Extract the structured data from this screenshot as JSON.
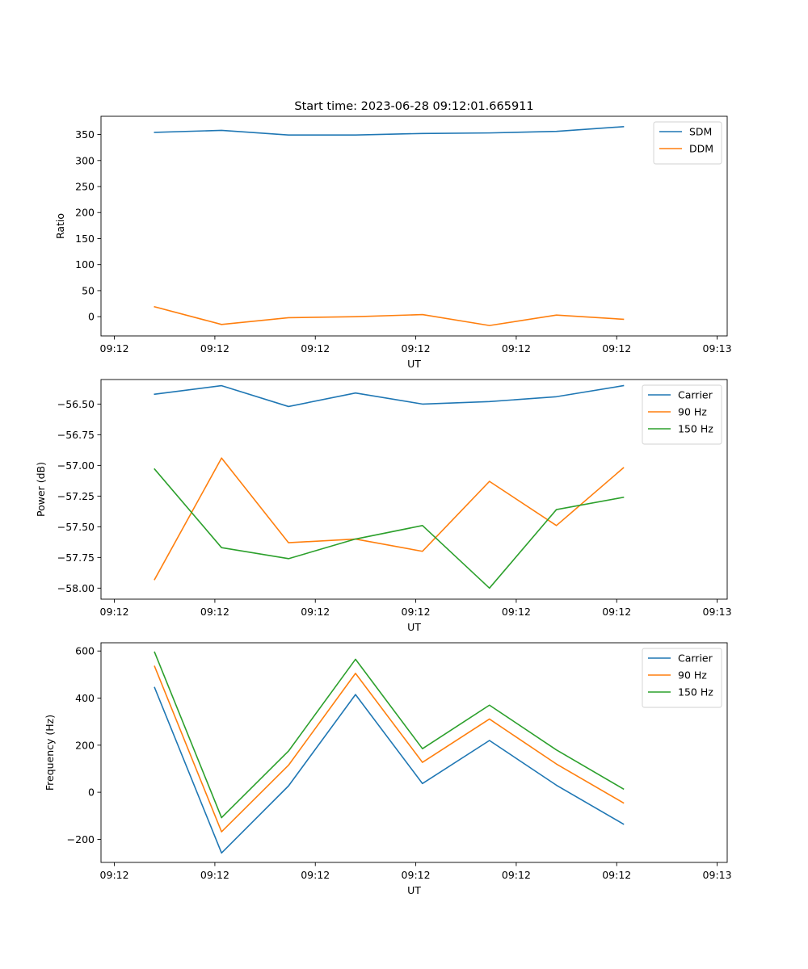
{
  "figure": {
    "suptitle": "Start time: 2023-06-28 09:12:01.665911"
  },
  "chart_data": [
    {
      "type": "line",
      "title": "Start time: 2023-06-28 09:12:01.665911",
      "xlabel": "UT",
      "ylabel": "Ratio",
      "x": [
        1,
        2,
        3,
        4,
        5,
        6,
        7,
        8
      ],
      "xlim": [
        0.2,
        9.55
      ],
      "xticks": [
        {
          "pos": 0.4,
          "label": "09:12"
        },
        {
          "pos": 1.9,
          "label": "09:12"
        },
        {
          "pos": 3.4,
          "label": "09:12"
        },
        {
          "pos": 4.9,
          "label": "09:12"
        },
        {
          "pos": 6.4,
          "label": "09:12"
        },
        {
          "pos": 7.9,
          "label": "09:12"
        },
        {
          "pos": 9.4,
          "label": "09:13"
        }
      ],
      "ylim": [
        -37,
        385
      ],
      "yticks": [
        0,
        50,
        100,
        150,
        200,
        250,
        300,
        350
      ],
      "ytick_labels": [
        "0",
        "50",
        "100",
        "150",
        "200",
        "250",
        "300",
        "350"
      ],
      "legend": "top-right",
      "series": [
        {
          "name": "SDM",
          "color": "#1f77b4",
          "values": [
            354,
            358,
            349,
            349,
            352,
            353,
            356,
            365
          ]
        },
        {
          "name": "DDM",
          "color": "#ff7f0e",
          "values": [
            19,
            -15,
            -2,
            0,
            4,
            -17,
            3,
            -5
          ]
        }
      ]
    },
    {
      "type": "line",
      "title": "",
      "xlabel": "UT",
      "ylabel": "Power (dB)",
      "x": [
        1,
        2,
        3,
        4,
        5,
        6,
        7,
        8
      ],
      "xlim": [
        0.2,
        9.55
      ],
      "xticks": [
        {
          "pos": 0.4,
          "label": "09:12"
        },
        {
          "pos": 1.9,
          "label": "09:12"
        },
        {
          "pos": 3.4,
          "label": "09:12"
        },
        {
          "pos": 4.9,
          "label": "09:12"
        },
        {
          "pos": 6.4,
          "label": "09:12"
        },
        {
          "pos": 7.9,
          "label": "09:12"
        },
        {
          "pos": 9.4,
          "label": "09:13"
        }
      ],
      "ylim": [
        -58.09,
        -56.3
      ],
      "yticks": [
        -58.0,
        -57.75,
        -57.5,
        -57.25,
        -57.0,
        -56.75,
        -56.5
      ],
      "ytick_labels": [
        "−58.00",
        "−57.75",
        "−57.50",
        "−57.25",
        "−57.00",
        "−56.75",
        "−56.50"
      ],
      "legend": "top-right",
      "series": [
        {
          "name": "Carrier",
          "color": "#1f77b4",
          "values": [
            -56.42,
            -56.35,
            -56.52,
            -56.41,
            -56.5,
            -56.48,
            -56.44,
            -56.35
          ]
        },
        {
          "name": "90 Hz",
          "color": "#ff7f0e",
          "values": [
            -57.93,
            -56.94,
            -57.63,
            -57.6,
            -57.7,
            -57.13,
            -57.49,
            -57.02
          ]
        },
        {
          "name": "150 Hz",
          "color": "#2ca02c",
          "values": [
            -57.03,
            -57.67,
            -57.76,
            -57.6,
            -57.49,
            -58.0,
            -57.36,
            -57.26
          ]
        }
      ]
    },
    {
      "type": "line",
      "title": "",
      "xlabel": "UT",
      "ylabel": "Frequency (Hz)",
      "x": [
        1,
        2,
        3,
        4,
        5,
        6,
        7,
        8
      ],
      "xlim": [
        0.2,
        9.55
      ],
      "xticks": [
        {
          "pos": 0.4,
          "label": "09:12"
        },
        {
          "pos": 1.9,
          "label": "09:12"
        },
        {
          "pos": 3.4,
          "label": "09:12"
        },
        {
          "pos": 4.9,
          "label": "09:12"
        },
        {
          "pos": 6.4,
          "label": "09:12"
        },
        {
          "pos": 7.9,
          "label": "09:12"
        },
        {
          "pos": 9.4,
          "label": "09:13"
        }
      ],
      "ylim": [
        -298,
        635
      ],
      "yticks": [
        -200,
        0,
        200,
        400,
        600
      ],
      "ytick_labels": [
        "−200",
        "0",
        "200",
        "400",
        "600"
      ],
      "legend": "top-right",
      "series": [
        {
          "name": "Carrier",
          "color": "#1f77b4",
          "values": [
            445,
            -258,
            27,
            415,
            37,
            220,
            30,
            -135
          ]
        },
        {
          "name": "90 Hz",
          "color": "#ff7f0e",
          "values": [
            535,
            -168,
            115,
            505,
            127,
            311,
            120,
            -45
          ]
        },
        {
          "name": "150 Hz",
          "color": "#2ca02c",
          "values": [
            595,
            -108,
            175,
            565,
            185,
            370,
            180,
            14
          ]
        }
      ]
    }
  ]
}
